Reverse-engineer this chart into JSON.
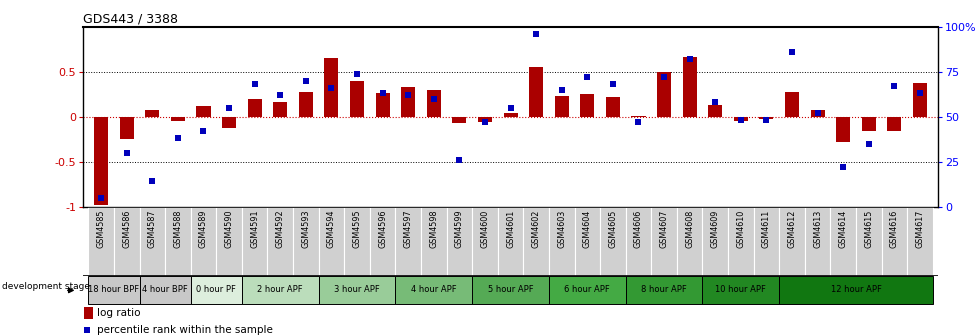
{
  "title": "GDS443 / 3388",
  "samples": [
    "GSM4585",
    "GSM4586",
    "GSM4587",
    "GSM4588",
    "GSM4589",
    "GSM4590",
    "GSM4591",
    "GSM4592",
    "GSM4593",
    "GSM4594",
    "GSM4595",
    "GSM4596",
    "GSM4597",
    "GSM4598",
    "GSM4599",
    "GSM4600",
    "GSM4601",
    "GSM4602",
    "GSM4603",
    "GSM4604",
    "GSM4605",
    "GSM4606",
    "GSM4607",
    "GSM4608",
    "GSM4609",
    "GSM4610",
    "GSM4611",
    "GSM4612",
    "GSM4613",
    "GSM4614",
    "GSM4615",
    "GSM4616",
    "GSM4617"
  ],
  "log_ratio": [
    -0.98,
    -0.25,
    0.08,
    -0.05,
    0.12,
    -0.12,
    0.2,
    0.16,
    0.27,
    0.65,
    0.4,
    0.26,
    0.33,
    0.3,
    -0.07,
    -0.06,
    0.04,
    0.55,
    0.23,
    0.25,
    0.22,
    0.01,
    0.5,
    0.67,
    0.13,
    -0.05,
    -0.02,
    0.28,
    0.07,
    -0.28,
    -0.16,
    -0.16,
    0.38
  ],
  "percentile": [
    5,
    30,
    14,
    38,
    42,
    55,
    68,
    62,
    70,
    66,
    74,
    63,
    62,
    60,
    26,
    47,
    55,
    96,
    65,
    72,
    68,
    47,
    72,
    82,
    58,
    48,
    48,
    86,
    52,
    22,
    35,
    67,
    63
  ],
  "stage_groups": [
    {
      "label": "18 hour BPF",
      "start": 0,
      "end": 2,
      "color": "#c8c8c8"
    },
    {
      "label": "4 hour BPF",
      "start": 2,
      "end": 4,
      "color": "#c8c8c8"
    },
    {
      "label": "0 hour PF",
      "start": 4,
      "end": 6,
      "color": "#ddeedd"
    },
    {
      "label": "2 hour APF",
      "start": 6,
      "end": 9,
      "color": "#bbddbb"
    },
    {
      "label": "3 hour APF",
      "start": 9,
      "end": 12,
      "color": "#99cc99"
    },
    {
      "label": "4 hour APF",
      "start": 12,
      "end": 15,
      "color": "#77bb77"
    },
    {
      "label": "5 hour APF",
      "start": 15,
      "end": 18,
      "color": "#55aa55"
    },
    {
      "label": "6 hour APF",
      "start": 18,
      "end": 21,
      "color": "#44aa44"
    },
    {
      "label": "8 hour APF",
      "start": 21,
      "end": 24,
      "color": "#339933"
    },
    {
      "label": "10 hour APF",
      "start": 24,
      "end": 27,
      "color": "#228822"
    },
    {
      "label": "12 hour APF",
      "start": 27,
      "end": 33,
      "color": "#117711"
    }
  ],
  "bar_color": "#aa0000",
  "dot_color": "#0000bb",
  "ylim_left": [
    -1.0,
    1.0
  ],
  "yticks_left": [
    -1.0,
    -0.5,
    0.0,
    0.5
  ],
  "ylim_right": [
    0,
    100
  ],
  "yticks_right": [
    0,
    25,
    50,
    75,
    100
  ],
  "ylabel_right_labels": [
    "0",
    "25",
    "50",
    "75",
    "100%"
  ]
}
